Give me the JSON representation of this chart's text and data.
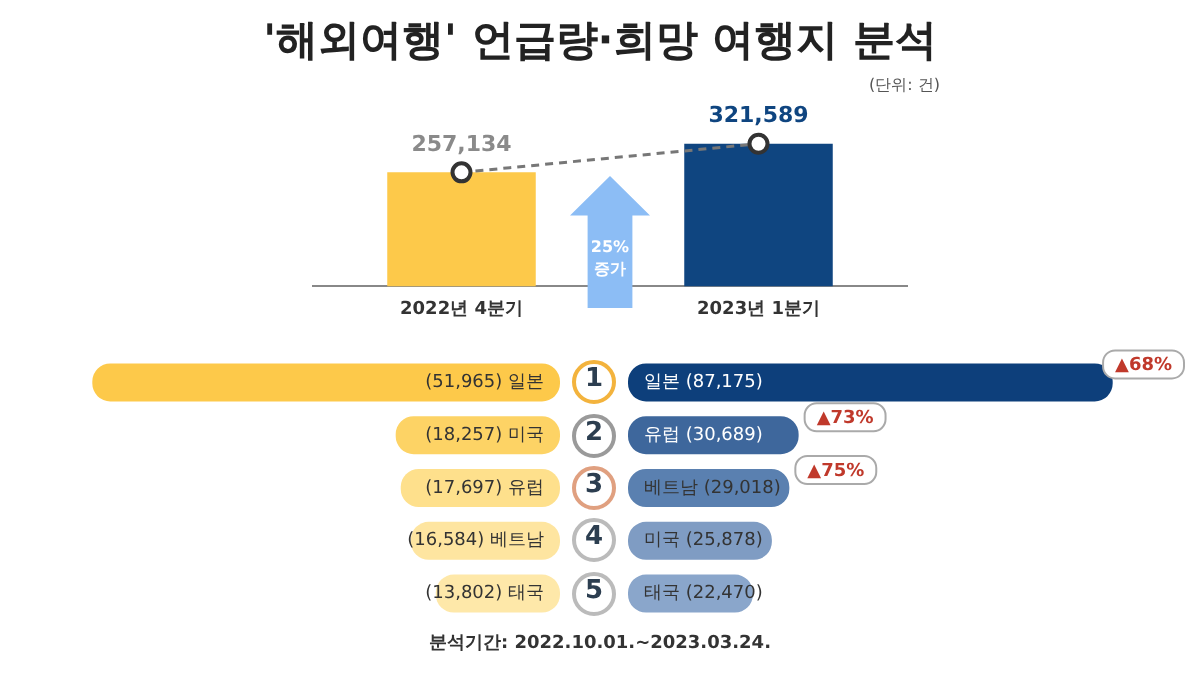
{
  "chart_data": [
    {
      "type": "bar",
      "title": "'해외여행' 언급량·희망 여행지 분석",
      "categories": [
        "2022년 4분기",
        "2023년 1분기"
      ],
      "series": [
        {
          "type": "bar",
          "colors": [
            "#fdc94a",
            "#0f4580"
          ],
          "values": [
            257134,
            321589
          ]
        },
        {
          "type": "line",
          "color": "#777777",
          "marker": "circle",
          "line_style": "dashed",
          "values": [
            257134,
            321589
          ],
          "value_labels": [
            "257,134",
            "321,589"
          ]
        }
      ],
      "grid": false,
      "legend": false,
      "annotations": [
        "(단위: 건)",
        "25% 증가"
      ]
    },
    {
      "type": "bar",
      "orientation": "horizontal",
      "categories": [
        "일본",
        "미국",
        "유럽",
        "베트남",
        "태국"
      ],
      "values": [
        51965,
        18257,
        17697,
        16584,
        13802
      ],
      "value_labels": [
        "(51,965)",
        "(18,257)",
        "(17,697)",
        "(16,584)",
        "(13,802)"
      ],
      "colors": [
        "#fdc94a",
        "#fdd365",
        "#fee08c",
        "#fee5a0",
        "#fee8a9"
      ],
      "grid": false,
      "legend": false,
      "annotations": [
        "1",
        "2",
        "3",
        "4",
        "5"
      ]
    },
    {
      "type": "bar",
      "orientation": "horizontal",
      "categories": [
        "일본",
        "유럽",
        "베트남",
        "미국",
        "태국"
      ],
      "values": [
        87175,
        30689,
        29018,
        25878,
        22470
      ],
      "value_labels": [
        "(87,175)",
        "(30,689)",
        "(29,018)",
        "(25,878)",
        "(22,470)"
      ],
      "colors": [
        "#0d3f7b",
        "#3e679c",
        "#5a80b0",
        "#7f9cc3",
        "#8aa6cb"
      ],
      "grid": false,
      "legend": false,
      "annotations": [
        {
          "text": "▲68%",
          "x": 87175,
          "y": "일본"
        },
        {
          "text": "▲73%",
          "x": 30689,
          "y": "유럽"
        },
        {
          "text": "▲75%",
          "x": 29018,
          "y": "베트남"
        },
        "분석기간: 2022.10.01.~2023.03.24."
      ]
    }
  ]
}
